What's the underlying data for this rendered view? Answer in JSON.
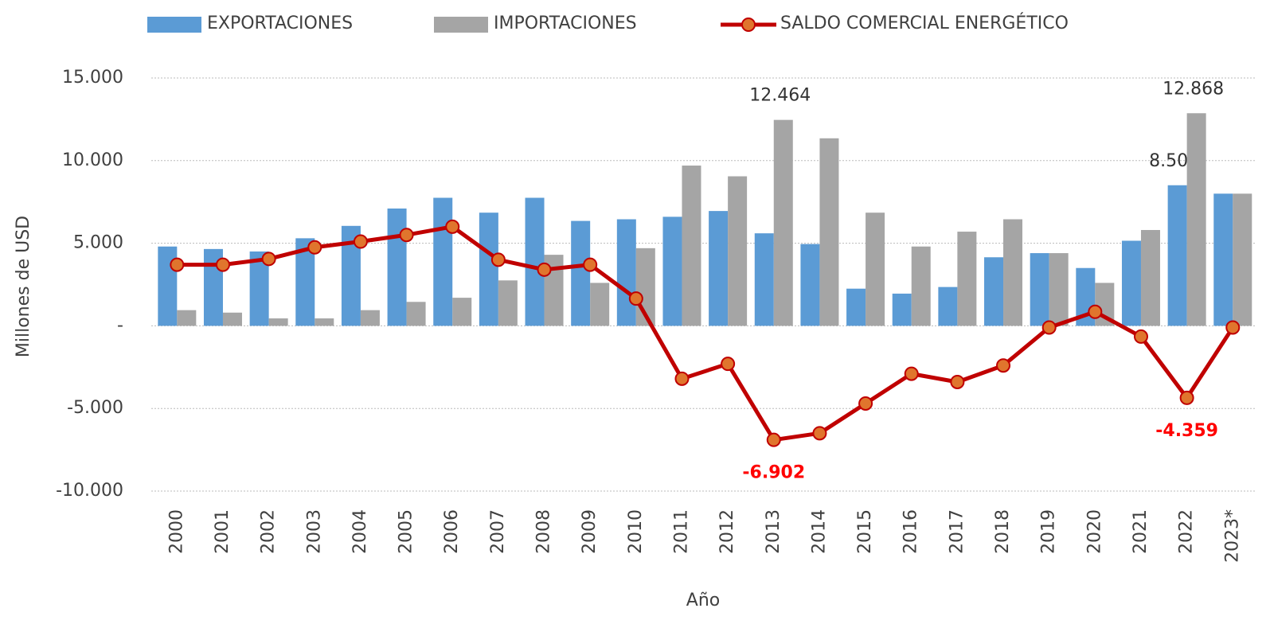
{
  "chart_data": {
    "type": "bar_line",
    "y_axis_label": "Millones de USD",
    "x_axis_label": "Año",
    "categories": [
      "2000",
      "2001",
      "2002",
      "2003",
      "2004",
      "2005",
      "2006",
      "2007",
      "2008",
      "2009",
      "2010",
      "2011",
      "2012",
      "2013",
      "2014",
      "2015",
      "2016",
      "2017",
      "2018",
      "2019",
      "2020",
      "2021",
      "2022",
      "2023*"
    ],
    "series": [
      {
        "name": "EXPORTACIONES",
        "type": "bar",
        "color": "#5b9bd5",
        "values": [
          4800,
          4650,
          4500,
          5300,
          6050,
          7100,
          7750,
          6850,
          7750,
          6350,
          6450,
          6600,
          6950,
          5600,
          4950,
          2250,
          1950,
          2350,
          4150,
          4400,
          3500,
          5150,
          8509,
          8000
        ],
        "value_labels": [
          null,
          null,
          null,
          null,
          null,
          null,
          null,
          null,
          null,
          null,
          null,
          null,
          null,
          null,
          null,
          null,
          null,
          null,
          null,
          null,
          null,
          null,
          "8.509",
          null
        ],
        "label_color": "#333333"
      },
      {
        "name": "IMPORTACIONES",
        "type": "bar",
        "color": "#a5a5a5",
        "values": [
          950,
          800,
          450,
          450,
          950,
          1450,
          1700,
          2750,
          4300,
          2600,
          4700,
          9700,
          9050,
          12464,
          11350,
          6850,
          4800,
          5700,
          6450,
          4400,
          2600,
          5800,
          12868,
          8000
        ],
        "value_labels": [
          null,
          null,
          null,
          null,
          null,
          null,
          null,
          null,
          null,
          null,
          null,
          null,
          null,
          "12.464",
          null,
          null,
          null,
          null,
          null,
          null,
          null,
          null,
          "12.868",
          null
        ],
        "label_color": "#333333"
      },
      {
        "name": "SALDO COMERCIAL ENERGÉTICO",
        "type": "line",
        "color": "#c00000",
        "marker_color": "#e0752d",
        "values": [
          3700,
          3700,
          4050,
          4750,
          5100,
          5500,
          6000,
          4000,
          3400,
          3700,
          1650,
          -3200,
          -2300,
          -6902,
          -6500,
          -4700,
          -2900,
          -3400,
          -2400,
          -100,
          850,
          -650,
          -4359,
          -100
        ],
        "value_labels": [
          null,
          null,
          null,
          null,
          null,
          null,
          null,
          null,
          null,
          null,
          null,
          null,
          null,
          "-6.902",
          null,
          null,
          null,
          null,
          null,
          null,
          null,
          null,
          "-4.359",
          null
        ],
        "label_color": "#ff0000"
      }
    ],
    "ylim": [
      -10000,
      15000
    ],
    "yticks": [
      {
        "value": -10000,
        "label": "-10.000"
      },
      {
        "value": -5000,
        "label": "-5.000"
      },
      {
        "value": 0,
        "label": "-"
      },
      {
        "value": 5000,
        "label": "5.000"
      },
      {
        "value": 10000,
        "label": "10.000"
      },
      {
        "value": 15000,
        "label": "15.000"
      }
    ],
    "grid": true,
    "legend": "top"
  }
}
